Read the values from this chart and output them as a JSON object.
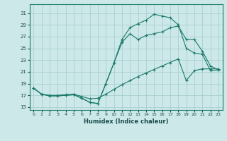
{
  "xlabel": "Humidex (Indice chaleur)",
  "bg_color": "#cce8e8",
  "grid_color": "#aacfcf",
  "line_color": "#1a7a6a",
  "xlim": [
    -0.5,
    23.5
  ],
  "ylim": [
    14.5,
    32.5
  ],
  "xticks": [
    0,
    1,
    2,
    3,
    4,
    5,
    6,
    7,
    8,
    9,
    10,
    11,
    12,
    13,
    14,
    15,
    16,
    17,
    18,
    19,
    20,
    21,
    22,
    23
  ],
  "yticks": [
    15,
    17,
    19,
    21,
    23,
    25,
    27,
    29,
    31
  ],
  "line1_x": [
    0,
    1,
    2,
    3,
    4,
    5,
    6,
    7,
    8,
    9,
    10,
    11,
    12,
    13,
    14,
    15,
    16,
    17,
    18,
    19,
    20,
    21,
    22,
    23
  ],
  "line1_y": [
    18.2,
    17.2,
    16.9,
    16.9,
    17.0,
    17.1,
    16.5,
    15.8,
    15.6,
    19.0,
    22.5,
    26.5,
    28.5,
    29.2,
    29.8,
    30.8,
    30.5,
    30.2,
    29.0,
    25.0,
    24.2,
    24.0,
    21.2,
    21.3
  ],
  "line2_x": [
    0,
    1,
    2,
    3,
    4,
    5,
    6,
    7,
    8,
    9,
    10,
    11,
    12,
    13,
    14,
    15,
    16,
    17,
    18,
    19,
    20,
    21,
    22,
    23
  ],
  "line2_y": [
    18.2,
    17.2,
    16.9,
    16.9,
    17.0,
    17.1,
    16.5,
    15.8,
    15.6,
    19.0,
    22.5,
    26.0,
    27.5,
    26.5,
    27.2,
    27.5,
    27.8,
    28.5,
    28.8,
    26.5,
    26.5,
    24.5,
    22.0,
    21.3
  ],
  "line3_x": [
    0,
    1,
    2,
    3,
    4,
    5,
    6,
    7,
    8,
    9,
    10,
    11,
    12,
    13,
    14,
    15,
    16,
    17,
    18,
    19,
    20,
    21,
    22,
    23
  ],
  "line3_y": [
    18.2,
    17.2,
    17.0,
    17.0,
    17.1,
    17.2,
    16.8,
    16.4,
    16.5,
    17.2,
    18.0,
    18.8,
    19.5,
    20.2,
    20.8,
    21.4,
    22.0,
    22.6,
    23.2,
    19.5,
    21.2,
    21.5,
    21.5,
    21.5
  ]
}
